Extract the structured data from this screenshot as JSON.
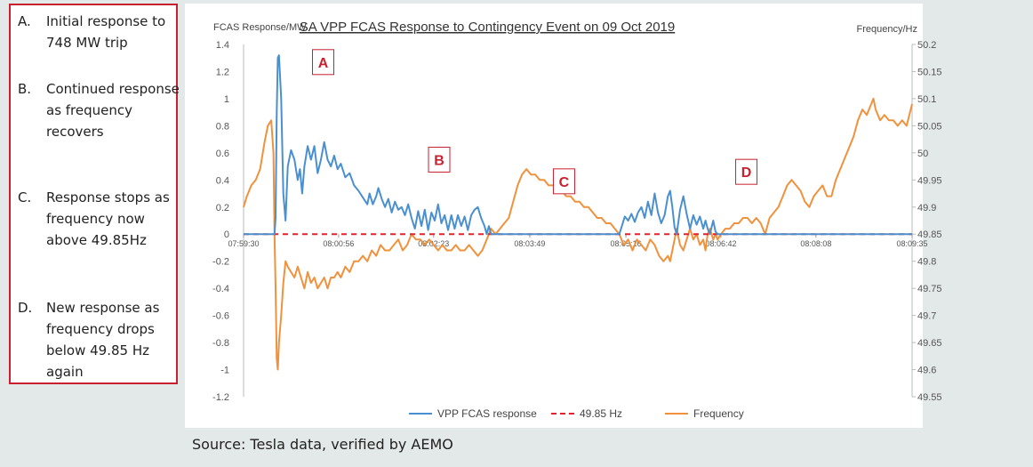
{
  "notes": [
    {
      "letter": "A.",
      "text": "Initial response to 748 MW trip"
    },
    {
      "letter": "B.",
      "text": "Continued response as frequency recovers"
    },
    {
      "letter": "C.",
      "text": "Response stops as frequency now above 49.85Hz"
    },
    {
      "letter": "D.",
      "text": "New response as frequency drops below 49.85 Hz again"
    }
  ],
  "source": "Source: Tesla data, verified by AEMO",
  "colors": {
    "response": "#4a90d0",
    "threshold": "#e8202a",
    "frequency": "#f0913c",
    "marker": "#c8202e"
  },
  "chart_data": {
    "type": "line",
    "title": "SA VPP FCAS Response to Contingency Event on 09 Oct 2019",
    "ylabel": "FCAS Response/MW",
    "y2label": "Frequency/Hz",
    "ylim": [
      -1.2,
      1.4
    ],
    "y2lim": [
      49.55,
      50.2
    ],
    "yticks": [
      "1.4",
      "1.2",
      "1",
      "0.8",
      "0.6",
      "0.4",
      "0.2",
      "0",
      "-0.2",
      "-0.4",
      "-0.6",
      "-0.8",
      "-1",
      "-1.2"
    ],
    "y2ticks": [
      "50.2",
      "50.15",
      "50.1",
      "50.05",
      "50",
      "49.95",
      "49.9",
      "49.85",
      "49.8",
      "49.75",
      "49.7",
      "49.65",
      "49.6",
      "49.55"
    ],
    "xlim": [
      0,
      605
    ],
    "xticks": [
      {
        "t": 0,
        "label": "07:59:30"
      },
      {
        "t": 86,
        "label": "08:00:56"
      },
      {
        "t": 172,
        "label": "08:02:23"
      },
      {
        "t": 259,
        "label": "08:03:49"
      },
      {
        "t": 346,
        "label": "08:05:16"
      },
      {
        "t": 432,
        "label": "08:06:42"
      },
      {
        "t": 518,
        "label": "08:08:08"
      },
      {
        "t": 605,
        "label": "08:09:35"
      }
    ],
    "legend": {
      "position": "bottom"
    },
    "series": [
      {
        "name": "VPP FCAS response",
        "axis": "left",
        "points": [
          [
            0,
            0
          ],
          [
            28,
            0
          ],
          [
            29,
            0.12
          ],
          [
            30,
            0.9
          ],
          [
            31,
            1.3
          ],
          [
            32,
            1.32
          ],
          [
            34,
            1.0
          ],
          [
            36,
            0.3
          ],
          [
            38,
            0.1
          ],
          [
            40,
            0.5
          ],
          [
            43,
            0.62
          ],
          [
            46,
            0.55
          ],
          [
            49,
            0.4
          ],
          [
            51,
            0.48
          ],
          [
            53,
            0.3
          ],
          [
            55,
            0.5
          ],
          [
            58,
            0.65
          ],
          [
            61,
            0.55
          ],
          [
            64,
            0.65
          ],
          [
            67,
            0.45
          ],
          [
            70,
            0.55
          ],
          [
            73,
            0.68
          ],
          [
            76,
            0.55
          ],
          [
            79,
            0.5
          ],
          [
            82,
            0.58
          ],
          [
            85,
            0.48
          ],
          [
            88,
            0.52
          ],
          [
            92,
            0.42
          ],
          [
            96,
            0.45
          ],
          [
            100,
            0.36
          ],
          [
            104,
            0.32
          ],
          [
            108,
            0.27
          ],
          [
            112,
            0.22
          ],
          [
            114,
            0.3
          ],
          [
            117,
            0.22
          ],
          [
            120,
            0.28
          ],
          [
            122,
            0.34
          ],
          [
            125,
            0.26
          ],
          [
            128,
            0.2
          ],
          [
            131,
            0.26
          ],
          [
            134,
            0.16
          ],
          [
            137,
            0.24
          ],
          [
            140,
            0.18
          ],
          [
            143,
            0.2
          ],
          [
            146,
            0.14
          ],
          [
            149,
            0.22
          ],
          [
            152,
            0.12
          ],
          [
            155,
            0.04
          ],
          [
            158,
            0.17
          ],
          [
            161,
            0.06
          ],
          [
            164,
            0.18
          ],
          [
            167,
            0.03
          ],
          [
            170,
            0.16
          ],
          [
            173,
            0.1
          ],
          [
            176,
            0.22
          ],
          [
            179,
            0.08
          ],
          [
            182,
            0.14
          ],
          [
            185,
            0.03
          ],
          [
            188,
            0.14
          ],
          [
            191,
            0.04
          ],
          [
            194,
            0.14
          ],
          [
            197,
            0.06
          ],
          [
            200,
            0.13
          ],
          [
            203,
            0.03
          ],
          [
            206,
            0.14
          ],
          [
            209,
            0.18
          ],
          [
            212,
            0.2
          ],
          [
            215,
            0.12
          ],
          [
            218,
            0.06
          ],
          [
            220,
            0
          ],
          [
            222,
            0.06
          ],
          [
            224,
            0
          ],
          [
            340,
            0
          ],
          [
            342,
            0.05
          ],
          [
            345,
            0.13
          ],
          [
            348,
            0.1
          ],
          [
            351,
            0.15
          ],
          [
            354,
            0.09
          ],
          [
            357,
            0.16
          ],
          [
            360,
            0.2
          ],
          [
            363,
            0.12
          ],
          [
            366,
            0.24
          ],
          [
            369,
            0.14
          ],
          [
            372,
            0.3
          ],
          [
            375,
            0.16
          ],
          [
            378,
            0.08
          ],
          [
            381,
            0.14
          ],
          [
            384,
            0.28
          ],
          [
            386,
            0.32
          ],
          [
            388,
            0.2
          ],
          [
            390,
            0.05
          ],
          [
            392,
            0
          ],
          [
            395,
            0.18
          ],
          [
            398,
            0.28
          ],
          [
            401,
            0.15
          ],
          [
            404,
            0.04
          ],
          [
            407,
            0.14
          ],
          [
            410,
            0.07
          ],
          [
            413,
            0.13
          ],
          [
            416,
            0.04
          ],
          [
            418,
            0.1
          ],
          [
            420,
            0.04
          ],
          [
            422,
            0.0
          ],
          [
            425,
            0.1
          ],
          [
            427,
            0.02
          ],
          [
            429,
            0.0
          ],
          [
            605,
            0
          ]
        ]
      },
      {
        "name": "49.85 Hz",
        "axis": "left",
        "points": [
          [
            0,
            0
          ],
          [
            605,
            0
          ]
        ]
      },
      {
        "name": "Frequency",
        "axis": "right",
        "points": [
          [
            0,
            49.9
          ],
          [
            3,
            49.92
          ],
          [
            7,
            49.94
          ],
          [
            11,
            49.95
          ],
          [
            15,
            49.97
          ],
          [
            19,
            50.02
          ],
          [
            22,
            50.05
          ],
          [
            25,
            50.06
          ],
          [
            27,
            50.0
          ],
          [
            28,
            49.85
          ],
          [
            29,
            49.75
          ],
          [
            30,
            49.62
          ],
          [
            31,
            49.6
          ],
          [
            32,
            49.65
          ],
          [
            34,
            49.7
          ],
          [
            36,
            49.76
          ],
          [
            38,
            49.8
          ],
          [
            40,
            49.79
          ],
          [
            43,
            49.78
          ],
          [
            46,
            49.77
          ],
          [
            49,
            49.79
          ],
          [
            52,
            49.77
          ],
          [
            55,
            49.75
          ],
          [
            58,
            49.78
          ],
          [
            61,
            49.76
          ],
          [
            64,
            49.77
          ],
          [
            67,
            49.75
          ],
          [
            70,
            49.76
          ],
          [
            73,
            49.77
          ],
          [
            76,
            49.75
          ],
          [
            79,
            49.77
          ],
          [
            82,
            49.77
          ],
          [
            85,
            49.78
          ],
          [
            88,
            49.77
          ],
          [
            92,
            49.79
          ],
          [
            96,
            49.78
          ],
          [
            100,
            49.8
          ],
          [
            104,
            49.8
          ],
          [
            108,
            49.81
          ],
          [
            112,
            49.8
          ],
          [
            116,
            49.82
          ],
          [
            120,
            49.81
          ],
          [
            124,
            49.83
          ],
          [
            128,
            49.82
          ],
          [
            132,
            49.82
          ],
          [
            136,
            49.83
          ],
          [
            140,
            49.84
          ],
          [
            144,
            49.82
          ],
          [
            148,
            49.83
          ],
          [
            152,
            49.85
          ],
          [
            156,
            49.84
          ],
          [
            160,
            49.84
          ],
          [
            164,
            49.83
          ],
          [
            168,
            49.84
          ],
          [
            172,
            49.83
          ],
          [
            176,
            49.82
          ],
          [
            180,
            49.83
          ],
          [
            184,
            49.82
          ],
          [
            188,
            49.82
          ],
          [
            192,
            49.83
          ],
          [
            196,
            49.82
          ],
          [
            200,
            49.82
          ],
          [
            204,
            49.83
          ],
          [
            208,
            49.82
          ],
          [
            212,
            49.81
          ],
          [
            216,
            49.82
          ],
          [
            220,
            49.84
          ],
          [
            224,
            49.86
          ],
          [
            228,
            49.85
          ],
          [
            232,
            49.86
          ],
          [
            236,
            49.87
          ],
          [
            240,
            49.88
          ],
          [
            244,
            49.91
          ],
          [
            248,
            49.94
          ],
          [
            252,
            49.96
          ],
          [
            256,
            49.97
          ],
          [
            260,
            49.96
          ],
          [
            264,
            49.96
          ],
          [
            268,
            49.95
          ],
          [
            272,
            49.95
          ],
          [
            276,
            49.94
          ],
          [
            280,
            49.94
          ],
          [
            284,
            49.93
          ],
          [
            288,
            49.93
          ],
          [
            292,
            49.92
          ],
          [
            296,
            49.92
          ],
          [
            300,
            49.91
          ],
          [
            304,
            49.91
          ],
          [
            308,
            49.9
          ],
          [
            312,
            49.9
          ],
          [
            316,
            49.89
          ],
          [
            320,
            49.88
          ],
          [
            324,
            49.88
          ],
          [
            328,
            49.87
          ],
          [
            332,
            49.87
          ],
          [
            336,
            49.86
          ],
          [
            340,
            49.85
          ],
          [
            344,
            49.83
          ],
          [
            348,
            49.84
          ],
          [
            352,
            49.82
          ],
          [
            356,
            49.84
          ],
          [
            360,
            49.83
          ],
          [
            364,
            49.82
          ],
          [
            368,
            49.84
          ],
          [
            372,
            49.83
          ],
          [
            376,
            49.81
          ],
          [
            380,
            49.8
          ],
          [
            384,
            49.81
          ],
          [
            386,
            49.8
          ],
          [
            388,
            49.82
          ],
          [
            390,
            49.84
          ],
          [
            392,
            49.86
          ],
          [
            395,
            49.83
          ],
          [
            398,
            49.82
          ],
          [
            401,
            49.84
          ],
          [
            404,
            49.86
          ],
          [
            407,
            49.84
          ],
          [
            410,
            49.85
          ],
          [
            413,
            49.83
          ],
          [
            416,
            49.84
          ],
          [
            418,
            49.82
          ],
          [
            420,
            49.85
          ],
          [
            422,
            49.86
          ],
          [
            425,
            49.84
          ],
          [
            427,
            49.85
          ],
          [
            429,
            49.84
          ],
          [
            432,
            49.85
          ],
          [
            436,
            49.86
          ],
          [
            440,
            49.86
          ],
          [
            444,
            49.87
          ],
          [
            448,
            49.87
          ],
          [
            452,
            49.88
          ],
          [
            456,
            49.88
          ],
          [
            460,
            49.87
          ],
          [
            464,
            49.88
          ],
          [
            468,
            49.87
          ],
          [
            472,
            49.85
          ],
          [
            476,
            49.88
          ],
          [
            480,
            49.89
          ],
          [
            484,
            49.9
          ],
          [
            488,
            49.92
          ],
          [
            492,
            49.94
          ],
          [
            496,
            49.95
          ],
          [
            500,
            49.94
          ],
          [
            504,
            49.93
          ],
          [
            508,
            49.91
          ],
          [
            512,
            49.9
          ],
          [
            516,
            49.92
          ],
          [
            520,
            49.93
          ],
          [
            524,
            49.94
          ],
          [
            528,
            49.92
          ],
          [
            532,
            49.92
          ],
          [
            536,
            49.95
          ],
          [
            540,
            49.97
          ],
          [
            544,
            49.99
          ],
          [
            548,
            50.01
          ],
          [
            552,
            50.03
          ],
          [
            556,
            50.06
          ],
          [
            560,
            50.08
          ],
          [
            564,
            50.07
          ],
          [
            568,
            50.09
          ],
          [
            570,
            50.1
          ],
          [
            572,
            50.08
          ],
          [
            576,
            50.06
          ],
          [
            580,
            50.07
          ],
          [
            584,
            50.06
          ],
          [
            588,
            50.06
          ],
          [
            592,
            50.05
          ],
          [
            596,
            50.06
          ],
          [
            600,
            50.05
          ],
          [
            605,
            50.09
          ]
        ]
      }
    ],
    "annotations": [
      {
        "label": "A",
        "t": 72,
        "y": 1.27
      },
      {
        "label": "B",
        "t": 177,
        "y": 0.55
      },
      {
        "label": "C",
        "t": 290,
        "y": 0.39
      },
      {
        "label": "D",
        "t": 455,
        "y": 0.46
      }
    ]
  }
}
